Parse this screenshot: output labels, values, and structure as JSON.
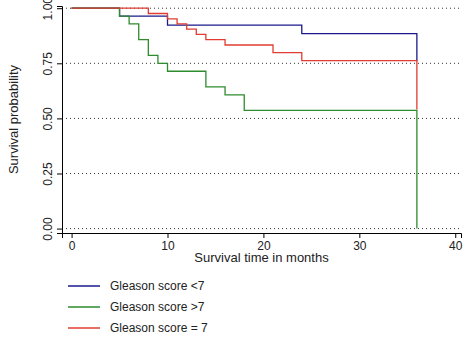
{
  "chart_data": {
    "type": "line",
    "line_style": "step",
    "x_label": "Survival time in months",
    "y_label": "Survival probability",
    "xlim": [
      -1,
      40.6
    ],
    "xticks": [
      0,
      10,
      20,
      30,
      40
    ],
    "ylim": [
      -0.02,
      1.01
    ],
    "yticks": [
      {
        "value": 0,
        "label": "0.00"
      },
      {
        "value": 0.25,
        "label": "0.25"
      },
      {
        "value": 0.5,
        "label": "0.50"
      },
      {
        "value": 0.75,
        "label": "0.75"
      },
      {
        "value": 1,
        "label": "1.00"
      }
    ],
    "grid": true,
    "legend": "bottom-left",
    "series": [
      {
        "name": "Gleason score <7",
        "color": "#1a1a8c",
        "x": [
          0,
          5,
          10,
          24,
          36
        ],
        "values": [
          1,
          0.964,
          0.923,
          0.885,
          0.76
        ]
      },
      {
        "name": "Gleason score >7",
        "color": "#2e8b2e",
        "x": [
          0,
          5,
          6,
          7,
          8,
          9,
          10,
          14,
          16,
          18,
          36
        ],
        "values": [
          1,
          0.964,
          0.929,
          0.857,
          0.786,
          0.75,
          0.714,
          0.643,
          0.607,
          0.536,
          0
        ]
      },
      {
        "name": "Gleason score = 7",
        "color": "#e03c31",
        "x": [
          0,
          8,
          10,
          11,
          12,
          13,
          14,
          16,
          21,
          24,
          36
        ],
        "values": [
          1,
          0.976,
          0.952,
          0.929,
          0.905,
          0.881,
          0.857,
          0.833,
          0.798,
          0.762,
          0.54
        ]
      }
    ]
  }
}
